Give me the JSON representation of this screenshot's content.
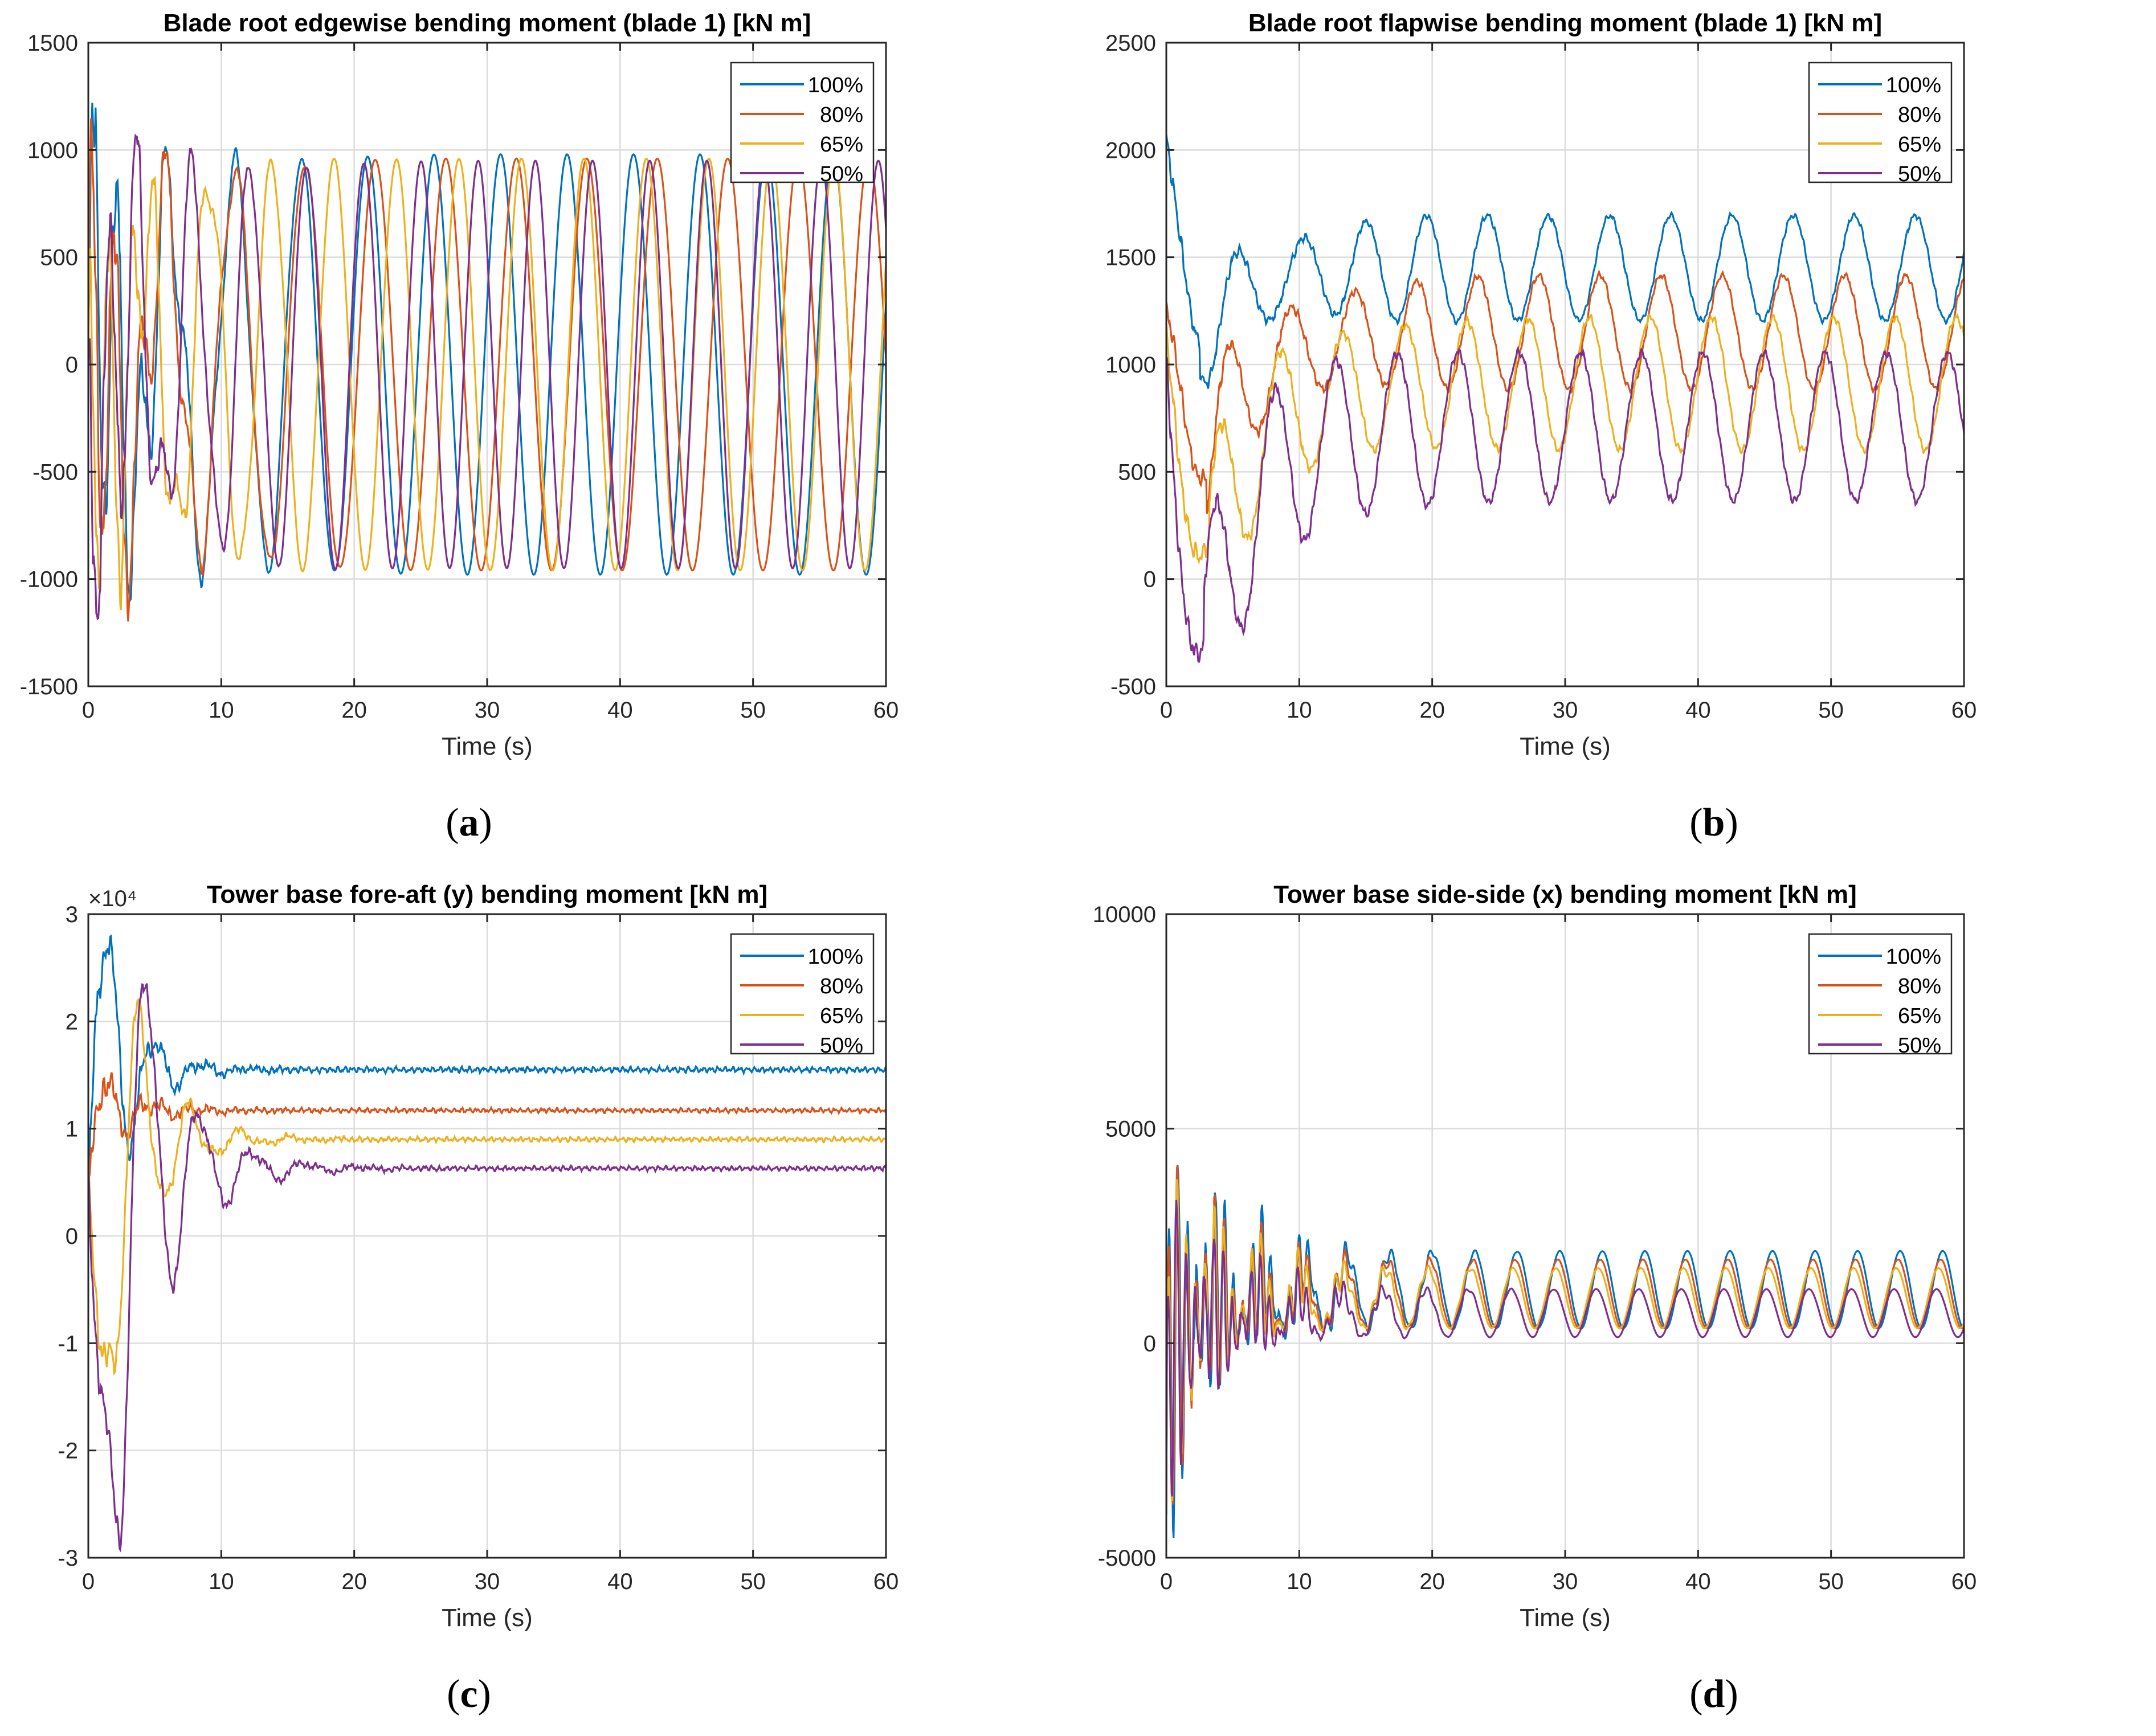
{
  "figure": {
    "captions": [
      "(a)",
      "(b)",
      "(c)",
      "(d)"
    ],
    "caption_letters": [
      "a",
      "b",
      "c",
      "d"
    ]
  },
  "colors": {
    "100%": "#0072BD",
    "80%": "#D95319",
    "65%": "#EDB120",
    "50%": "#7E2F8E",
    "grid": "#dcdcdc",
    "axis": "#262626"
  },
  "chart_data": [
    {
      "id": "a",
      "type": "line",
      "title": "Blade root edgewise bending moment (blade 1) [kN m]",
      "xlabel": "Time (s)",
      "ylabel": "",
      "xlim": [
        0,
        60
      ],
      "ylim": [
        -1500,
        1500
      ],
      "xticks": [
        0,
        10,
        20,
        30,
        40,
        50,
        60
      ],
      "yticks": [
        -1500,
        -1000,
        -500,
        0,
        500,
        1000,
        1500
      ],
      "exponent_label": "",
      "grid": true,
      "legend": {
        "placement": "top-right",
        "entries": [
          "100%",
          "80%",
          "65%",
          "50%"
        ]
      },
      "series": [
        {
          "name": "100%",
          "kind": "osc",
          "start": 150,
          "tr_amp": 1300,
          "tr_mid": 0,
          "tr_period": 1.8,
          "tau": 4,
          "mean": 0,
          "amp": 980,
          "period": 5.0,
          "noise": 180,
          "ph": 0.3
        },
        {
          "name": "80%",
          "kind": "osc",
          "start": 100,
          "tr_amp": 1250,
          "tr_mid": 0,
          "tr_period": 1.9,
          "tau": 4,
          "mean": 0,
          "amp": 960,
          "period": 5.3,
          "noise": 180,
          "ph": 1.1
        },
        {
          "name": "65%",
          "kind": "osc",
          "start": 50,
          "tr_amp": 1200,
          "tr_mid": 0,
          "tr_period": 1.7,
          "tau": 4,
          "mean": 0,
          "amp": 960,
          "period": 4.7,
          "noise": 170,
          "ph": 2.0
        },
        {
          "name": "50%",
          "kind": "osc",
          "start": 0,
          "tr_amp": 1350,
          "tr_mid": 0,
          "tr_period": 2.0,
          "tau": 4,
          "mean": 0,
          "amp": 950,
          "period": 4.3,
          "noise": 160,
          "ph": 2.7
        }
      ]
    },
    {
      "id": "b",
      "type": "line",
      "title": "Blade root flapwise bending moment (blade 1) [kN m]",
      "xlabel": "Time (s)",
      "ylabel": "",
      "xlim": [
        0,
        60
      ],
      "ylim": [
        -500,
        2500
      ],
      "xticks": [
        0,
        10,
        20,
        30,
        40,
        50,
        60
      ],
      "yticks": [
        -500,
        0,
        500,
        1000,
        1500,
        2000,
        2500
      ],
      "exponent_label": "",
      "grid": true,
      "legend": {
        "placement": "top-right",
        "entries": [
          "100%",
          "80%",
          "65%",
          "50%"
        ]
      },
      "series": [
        {
          "name": "100%",
          "kind": "flap",
          "start": 2050,
          "trough": 1150,
          "t_min": 2.5,
          "tr_amp": 250,
          "tr_period": 3.8,
          "tau": 6,
          "mean": 1450,
          "amp": 245,
          "period": 4.6,
          "noise": 40,
          "ph": 0.0
        },
        {
          "name": "80%",
          "kind": "flap",
          "start": 1150,
          "trough": 550,
          "t_min": 3.0,
          "tr_amp": 350,
          "tr_period": 4.0,
          "tau": 6,
          "mean": 1150,
          "amp": 265,
          "period": 4.6,
          "noise": 45,
          "ph": 1.0
        },
        {
          "name": "65%",
          "kind": "flap",
          "start": 1000,
          "trough": 120,
          "t_min": 3.2,
          "tr_amp": 450,
          "tr_period": 4.2,
          "tau": 6,
          "mean": 910,
          "amp": 310,
          "period": 4.6,
          "noise": 50,
          "ph": 2.1
        },
        {
          "name": "50%",
          "kind": "flap",
          "start": 1000,
          "trough": -380,
          "t_min": 2.8,
          "tr_amp": 500,
          "tr_period": 4.6,
          "tau": 6,
          "mean": 710,
          "amp": 345,
          "period": 4.6,
          "noise": 55,
          "ph": 3.0
        }
      ]
    },
    {
      "id": "c",
      "type": "line",
      "title": "Tower base fore-aft (y) bending moment [kN m]",
      "xlabel": "Time (s)",
      "ylabel": "",
      "xlim": [
        0,
        60
      ],
      "ylim": [
        -3,
        3
      ],
      "xticks": [
        0,
        10,
        20,
        30,
        40,
        50,
        60
      ],
      "yticks": [
        -3,
        -2,
        -1,
        0,
        1,
        2,
        3
      ],
      "exponent_label": "×10⁴",
      "grid": true,
      "legend": {
        "placement": "top-right",
        "entries": [
          "100%",
          "80%",
          "65%",
          "50%"
        ]
      },
      "series": [
        {
          "name": "100%",
          "kind": "tower",
          "start": 0.3,
          "peak": 2.9,
          "t_peak": 1.5,
          "tr_amp": 0.9,
          "tr_period": 3.5,
          "tau": 4,
          "mean": 1.55,
          "noise": 0.12,
          "ph": 0.0
        },
        {
          "name": "80%",
          "kind": "tower",
          "start": 0.2,
          "peak": 1.5,
          "t_peak": 1.2,
          "tr_amp": 0.6,
          "tr_period": 3.6,
          "tau": 4,
          "mean": 1.17,
          "noise": 0.1,
          "ph": 1.0
        },
        {
          "name": "65%",
          "kind": "tower",
          "start": 0.3,
          "peak": -1.35,
          "t_peak": 2.0,
          "tr_amp": 0.9,
          "tr_period": 3.8,
          "tau": 5,
          "mean": 0.9,
          "noise": 0.1,
          "ph": 2.0
        },
        {
          "name": "50%",
          "kind": "tower",
          "start": 0.5,
          "peak": -2.65,
          "t_peak": 2.4,
          "tr_amp": 1.1,
          "tr_period": 4.0,
          "tau": 6,
          "mean": 0.63,
          "noise": 0.1,
          "ph": 3.0
        }
      ]
    },
    {
      "id": "d",
      "type": "line",
      "title": "Tower base side-side (x) bending moment [kN m]",
      "xlabel": "Time (s)",
      "ylabel": "",
      "xlim": [
        0,
        60
      ],
      "ylim": [
        -5000,
        10000
      ],
      "xticks": [
        0,
        10,
        20,
        30,
        40,
        50,
        60
      ],
      "yticks": [
        -5000,
        0,
        5000,
        10000
      ],
      "exponent_label": "",
      "grid": true,
      "legend": {
        "placement": "top-right",
        "entries": [
          "100%",
          "80%",
          "65%",
          "50%"
        ]
      },
      "series": [
        {
          "name": "100%",
          "kind": "side",
          "start": 0,
          "tr_amp": 5500,
          "tau": 5,
          "mean": 1250,
          "amp": 900,
          "period": 3.2,
          "noise": 600,
          "ph": 0.0
        },
        {
          "name": "80%",
          "kind": "side",
          "start": 0,
          "tr_amp": 5000,
          "tau": 5,
          "mean": 1150,
          "amp": 800,
          "period": 3.2,
          "noise": 550,
          "ph": 0.3
        },
        {
          "name": "65%",
          "kind": "side",
          "start": 0,
          "tr_amp": 4600,
          "tau": 5,
          "mean": 1050,
          "amp": 700,
          "period": 3.2,
          "noise": 500,
          "ph": 0.6
        },
        {
          "name": "50%",
          "kind": "side",
          "start": 0,
          "tr_amp": 4200,
          "tau": 5,
          "mean": 700,
          "amp": 560,
          "period": 3.2,
          "noise": 450,
          "ph": 0.9
        }
      ]
    }
  ]
}
